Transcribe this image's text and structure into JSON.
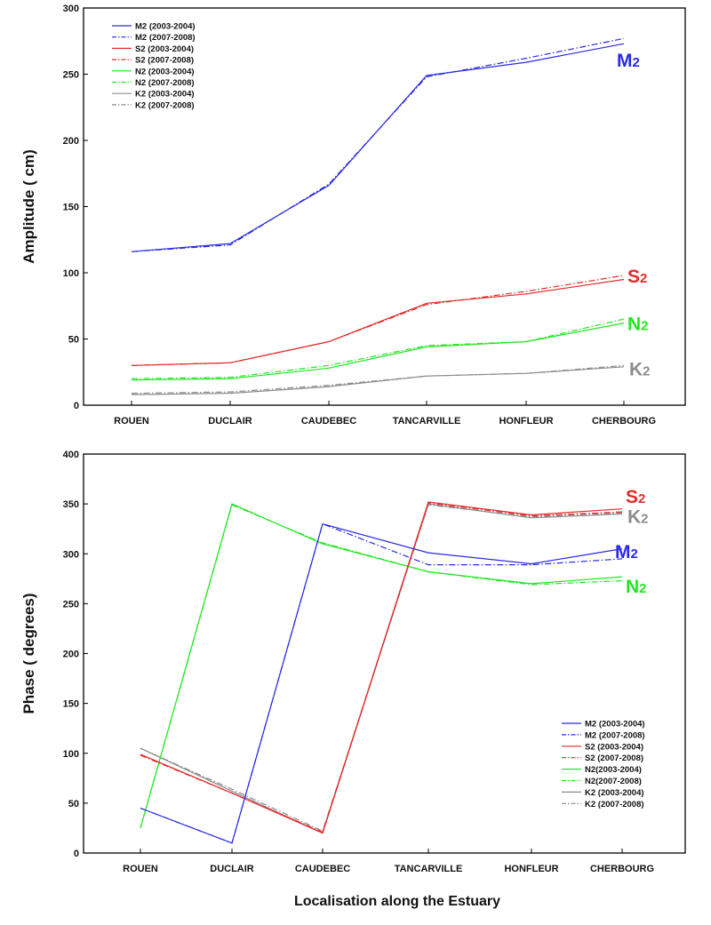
{
  "xlabel": "Localisation along the Estuary",
  "categories": [
    "ROUEN",
    "DUCLAIR",
    "CAUDEBEC",
    "TANCARVILLE",
    "HONFLEUR",
    "CHERBOURG"
  ],
  "colors": {
    "M2": "#2a2ae6",
    "S2": "#e62a2a",
    "N2": "#22e622",
    "K2": "#8c8c8c"
  },
  "chart_data": [
    {
      "type": "line",
      "ylabel": "Amplitude ( cm)",
      "ylim": [
        0,
        300
      ],
      "yticks": [
        0,
        50,
        100,
        150,
        200,
        250,
        300
      ],
      "legend_position": "top-left",
      "legend": [
        "M2 (2003-2004)",
        "M2 (2007-2008)",
        "S2 (2003-2004)",
        "S2 (2007-2008)",
        "N2 (2003-2004)",
        "N2 (2007-2008)",
        "K2 (2003-2004)",
        "K2 (2007-2008)"
      ],
      "annotations": [
        {
          "constituent": "M2",
          "base": "M",
          "sub": "2",
          "at": {
            "category": "CHERBOURG",
            "y": 261
          }
        },
        {
          "constituent": "S2",
          "base": "S",
          "sub": "2",
          "at": {
            "category": "CHERBOURG",
            "y": 98
          }
        },
        {
          "constituent": "N2",
          "base": "N",
          "sub": "2",
          "at": {
            "category": "CHERBOURG",
            "y": 62
          }
        },
        {
          "constituent": "K2",
          "base": "K",
          "sub": "2",
          "at": {
            "category": "CHERBOURG",
            "y": 28
          }
        }
      ],
      "series": [
        {
          "constituent": "M2",
          "period": "2003-2004",
          "style": "solid",
          "values": [
            116,
            122,
            166,
            249,
            259,
            273
          ]
        },
        {
          "constituent": "M2",
          "period": "2007-2008",
          "style": "dashdot",
          "values": [
            116,
            121,
            167,
            248,
            262,
            277
          ]
        },
        {
          "constituent": "S2",
          "period": "2003-2004",
          "style": "solid",
          "values": [
            30,
            32,
            48,
            77,
            84,
            95
          ]
        },
        {
          "constituent": "S2",
          "period": "2007-2008",
          "style": "dashdot",
          "values": [
            30,
            32,
            48,
            76,
            86,
            98
          ]
        },
        {
          "constituent": "N2",
          "period": "2003-2004",
          "style": "solid",
          "values": [
            19,
            20,
            28,
            44,
            48,
            62
          ]
        },
        {
          "constituent": "N2",
          "period": "2007-2008",
          "style": "dashdot",
          "values": [
            20,
            21,
            30,
            45,
            48,
            65
          ]
        },
        {
          "constituent": "K2",
          "period": "2003-2004",
          "style": "solid",
          "values": [
            8,
            9,
            14,
            22,
            24,
            29
          ]
        },
        {
          "constituent": "K2",
          "period": "2007-2008",
          "style": "dashdot",
          "values": [
            9,
            10,
            15,
            22,
            24,
            30
          ]
        }
      ]
    },
    {
      "type": "line",
      "ylabel": "Phase ( degrees)",
      "ylim": [
        0,
        400
      ],
      "yticks": [
        0,
        50,
        100,
        150,
        200,
        250,
        300,
        350,
        400
      ],
      "legend_position": "bottom-right",
      "legend": [
        "M2 (2003-2004)",
        "M2 (2007-2008)",
        "S2 (2003-2004)",
        "S2 (2007-2008)",
        "N2(2003-2004)",
        "N2(2007-2008)",
        "K2 (2003-2004)",
        "K2 (2007-2008)"
      ],
      "annotations": [
        {
          "constituent": "S2",
          "base": "S",
          "sub": "2",
          "at": {
            "category": "CHERBOURG",
            "y": 358
          }
        },
        {
          "constituent": "K2",
          "base": "K",
          "sub": "2",
          "at": {
            "category": "CHERBOURG",
            "y": 338
          }
        },
        {
          "constituent": "M2",
          "base": "M",
          "sub": "2",
          "at": {
            "category": "CHERBOURG",
            "y": 303
          }
        },
        {
          "constituent": "N2",
          "base": "N",
          "sub": "2",
          "at": {
            "category": "CHERBOURG",
            "y": 268
          }
        }
      ],
      "series": [
        {
          "constituent": "M2",
          "period": "2003-2004",
          "style": "solid",
          "values": [
            45,
            10,
            330,
            301,
            290,
            305
          ]
        },
        {
          "constituent": "M2",
          "period": "2007-2008",
          "style": "dashdot",
          "values": [
            45,
            10,
            330,
            289,
            289,
            295
          ]
        },
        {
          "constituent": "S2",
          "period": "2003-2004",
          "style": "solid",
          "values": [
            99,
            60,
            20,
            352,
            339,
            345
          ]
        },
        {
          "constituent": "S2",
          "period": "2007-2008",
          "style": "dashdot",
          "values": [
            98,
            60,
            21,
            351,
            338,
            342
          ]
        },
        {
          "constituent": "N2",
          "period": "2003-2004",
          "style": "solid",
          "values": [
            25,
            350,
            310,
            282,
            270,
            277
          ]
        },
        {
          "constituent": "N2",
          "period": "2007-2008",
          "style": "dashdot",
          "values": [
            25,
            349,
            311,
            282,
            269,
            273
          ]
        },
        {
          "constituent": "K2",
          "period": "2003-2004",
          "style": "solid",
          "values": [
            105,
            62,
            20,
            350,
            336,
            340
          ]
        },
        {
          "constituent": "K2",
          "period": "2007-2008",
          "style": "dashdot",
          "values": [
            105,
            64,
            22,
            349,
            337,
            341
          ]
        }
      ]
    }
  ]
}
